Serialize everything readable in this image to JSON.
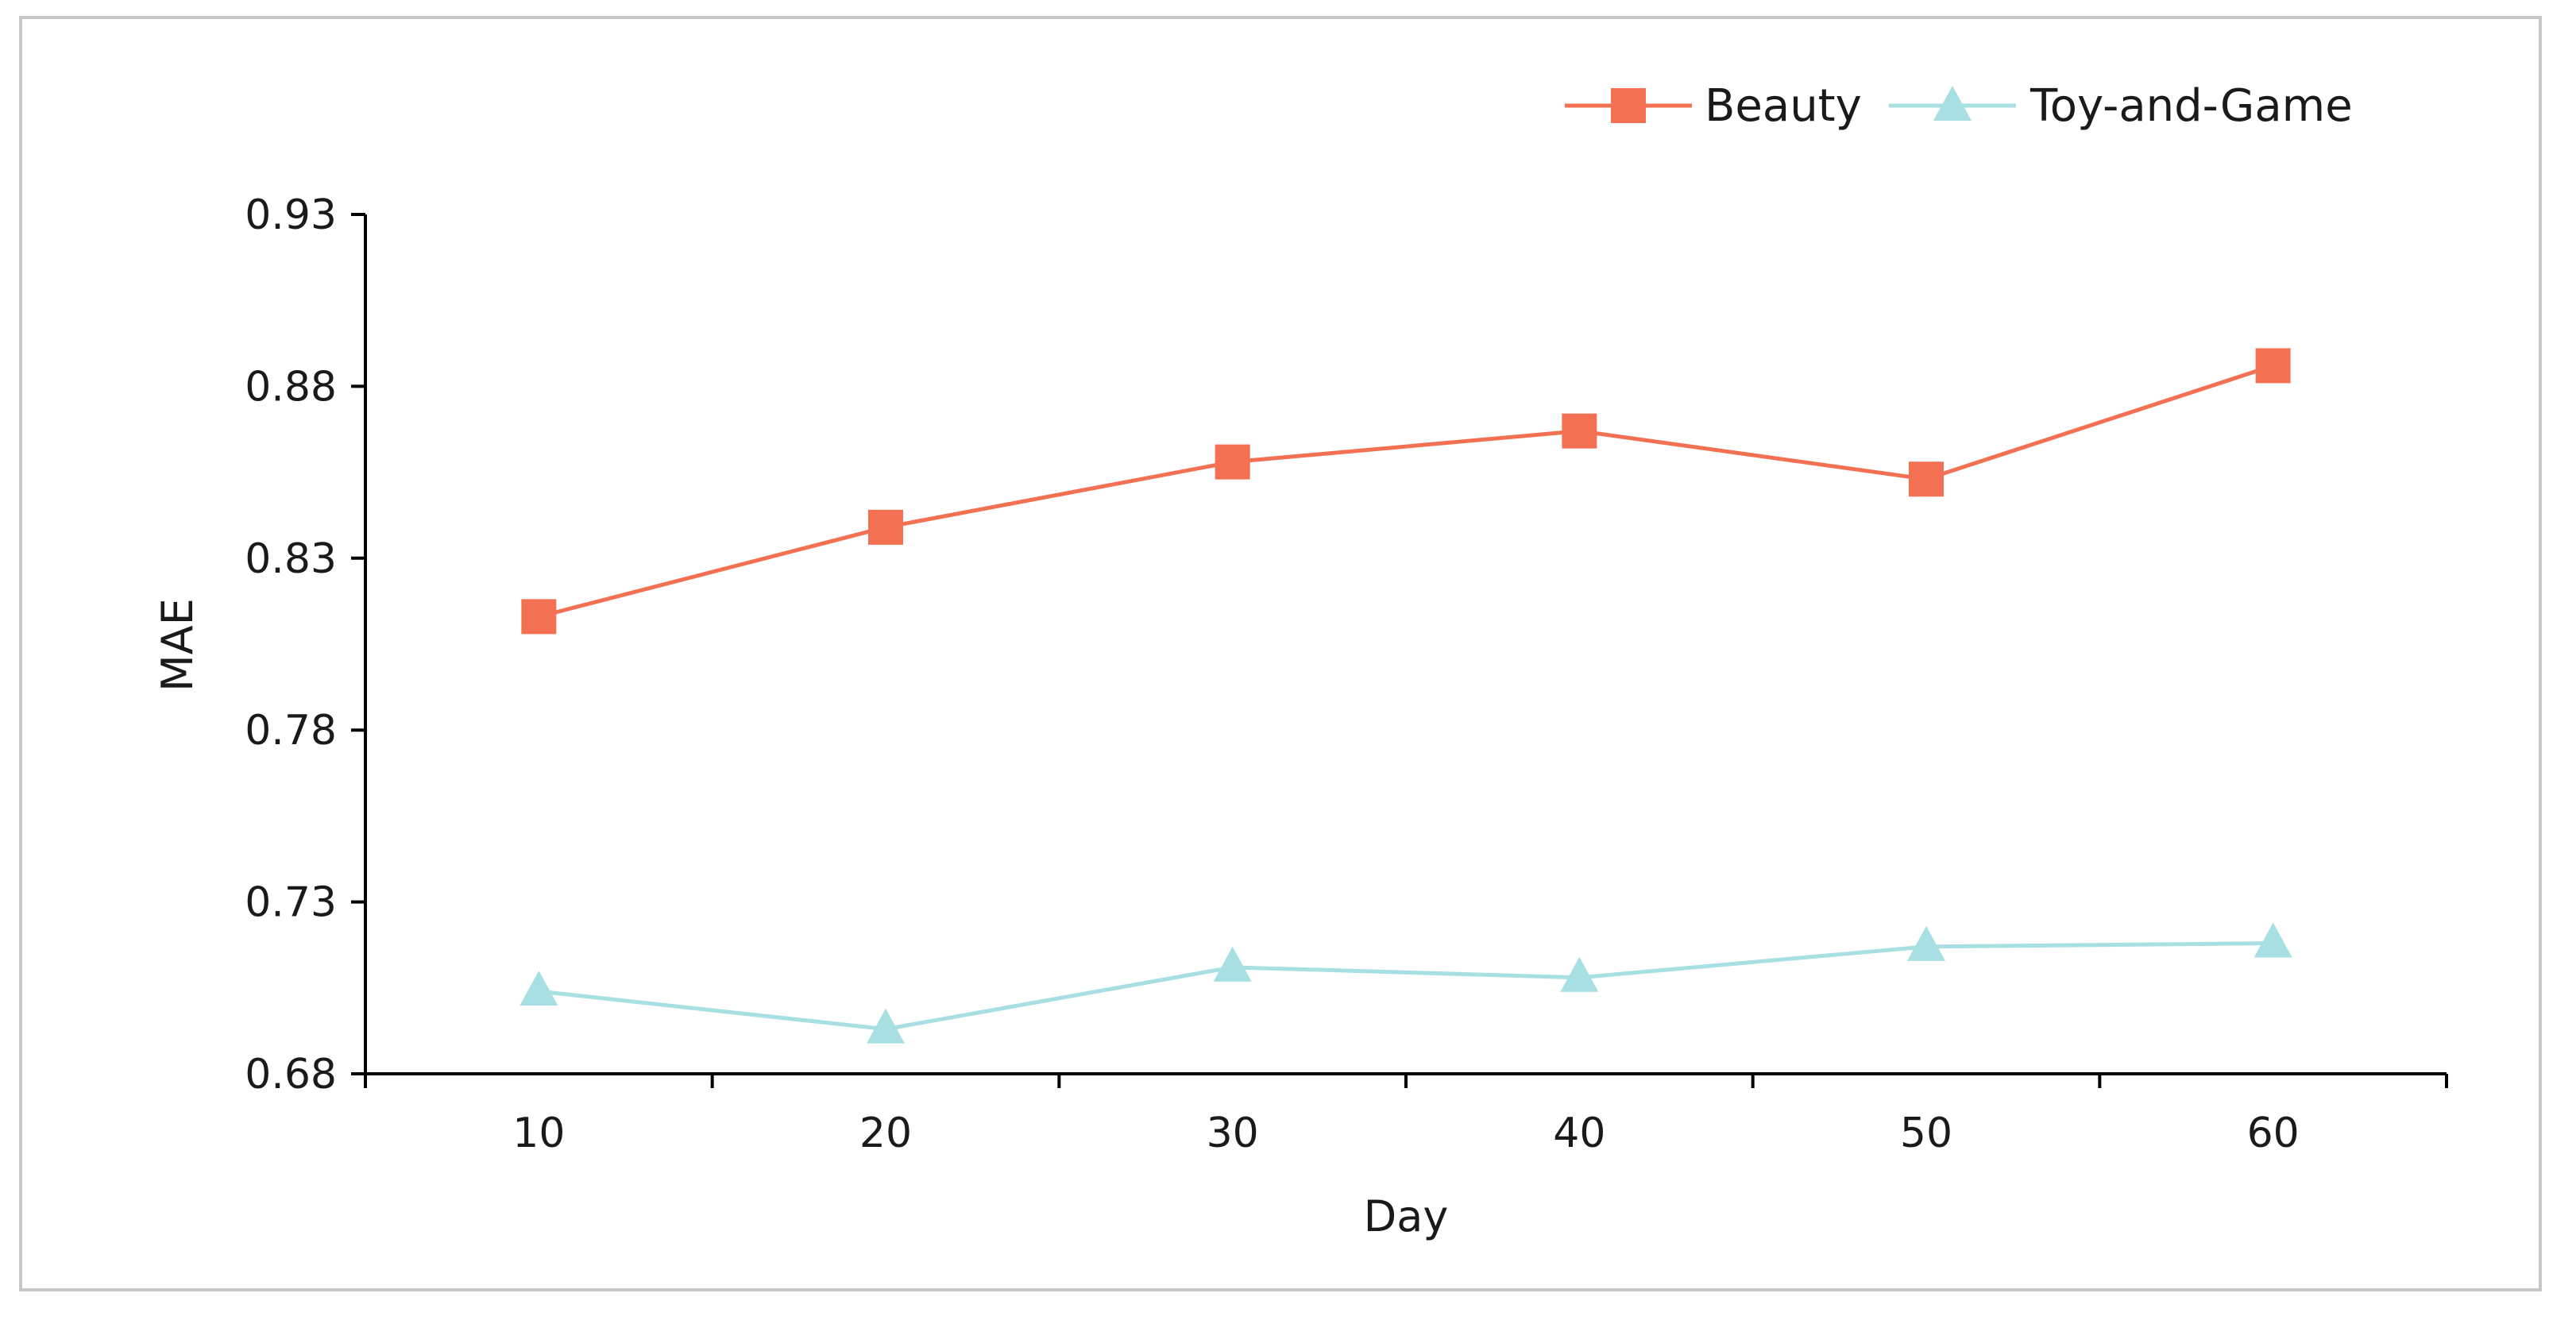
{
  "chart_data": {
    "type": "line",
    "title": "",
    "xlabel": "Day",
    "ylabel": "MAE",
    "x": [
      10,
      20,
      30,
      40,
      50,
      60
    ],
    "x_ticks": [
      "10",
      "20",
      "30",
      "40",
      "50",
      "60"
    ],
    "xlim": [
      5,
      65
    ],
    "ylim": [
      0.68,
      0.93
    ],
    "y_ticks": [
      "0.93",
      "0.88",
      "0.83",
      "0.78",
      "0.73",
      "0.68"
    ],
    "grid": false,
    "legend_position": "top-right",
    "series": [
      {
        "name": "Beauty",
        "marker": "square",
        "color": "#f37152",
        "values": [
          0.813,
          0.839,
          0.858,
          0.867,
          0.853,
          0.886
        ]
      },
      {
        "name": "Toy-and-Game",
        "marker": "triangle",
        "color": "#a8dfe2",
        "values": [
          0.704,
          0.693,
          0.711,
          0.708,
          0.717,
          0.718
        ]
      }
    ]
  }
}
